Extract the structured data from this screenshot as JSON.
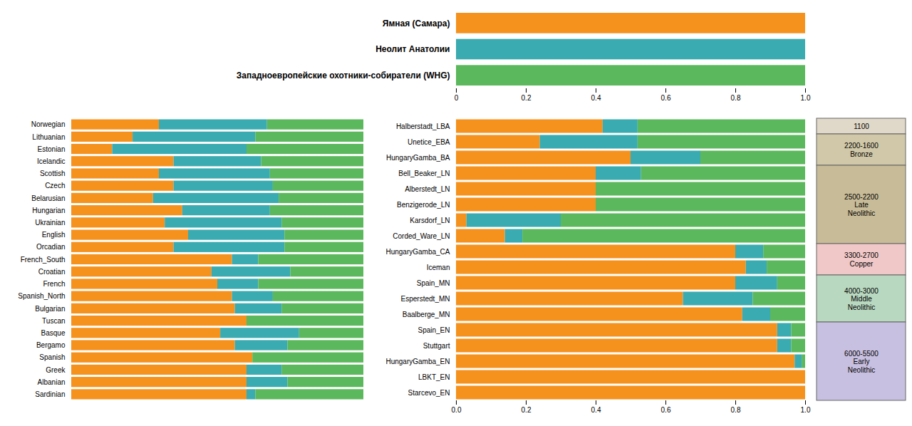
{
  "chart_data": [
    {
      "type": "bar",
      "orientation": "horizontal",
      "stacked": true,
      "categories": [
        "Ямная (Самара)",
        "Неолит Анатолии",
        "Западноевропейские охотники-собиратели (WHG)"
      ],
      "series": [
        {
          "color": "#F5921E",
          "values": [
            1.0,
            0.0,
            0.0
          ]
        },
        {
          "color": "#3AABB0",
          "values": [
            0.0,
            1.0,
            0.0
          ]
        },
        {
          "color": "#5CB85C",
          "values": [
            0.0,
            0.0,
            1.0
          ]
        }
      ],
      "xlim": [
        0,
        1
      ],
      "xticks": [
        0,
        0.2,
        0.4,
        0.6,
        0.8,
        {
          "value": 1,
          "label": "1.0"
        }
      ]
    },
    {
      "type": "bar",
      "orientation": "horizontal",
      "stacked": true,
      "categories": [
        "Norwegian",
        "Lithuanian",
        "Estonian",
        "Icelandic",
        "Scottish",
        "Czech",
        "Belarusian",
        "Hungarian",
        "Ukrainian",
        "English",
        "Orcadian",
        "French_South",
        "Croatian",
        "French",
        "Spanish_North",
        "Bulgarian",
        "Tuscan",
        "Basque",
        "Bergamo",
        "Spanish",
        "Greek",
        "Albanian",
        "Sardinian"
      ],
      "series": [
        {
          "color": "#F5921E",
          "values": [
            0.3,
            0.21,
            0.14,
            0.35,
            0.3,
            0.35,
            0.28,
            0.38,
            0.32,
            0.4,
            0.35,
            0.55,
            0.48,
            0.5,
            0.55,
            0.56,
            0.6,
            0.51,
            0.56,
            0.62,
            0.6,
            0.6,
            0.6
          ]
        },
        {
          "color": "#3AABB0",
          "values": [
            0.37,
            0.42,
            0.46,
            0.3,
            0.38,
            0.34,
            0.43,
            0.3,
            0.4,
            0.33,
            0.38,
            0.09,
            0.27,
            0.14,
            0.14,
            0.16,
            0.0,
            0.27,
            0.18,
            0.0,
            0.12,
            0.14,
            0.03
          ]
        },
        {
          "color": "#5CB85C",
          "values": [
            0.33,
            0.37,
            0.4,
            0.35,
            0.32,
            0.31,
            0.29,
            0.32,
            0.28,
            0.27,
            0.27,
            0.36,
            0.25,
            0.36,
            0.31,
            0.28,
            0.4,
            0.22,
            0.26,
            0.38,
            0.28,
            0.26,
            0.37
          ]
        }
      ],
      "xlim": [
        0,
        1
      ],
      "xticks": [],
      "tick_labels": "y"
    },
    {
      "type": "bar",
      "orientation": "horizontal",
      "stacked": true,
      "categories": [
        "Halberstadt_LBA",
        "Unetice_EBA",
        "HungaryGamba_BA",
        "Bell_Beaker_LN",
        "Alberstedt_LN",
        "Benzigerode_LN",
        "Karsdorf_LN",
        "Corded_Ware_LN",
        "HungaryGamba_CA",
        "Iceman",
        "Spain_MN",
        "Esperstedt_MN",
        "Baalberge_MN",
        "Spain_EN",
        "Stuttgart",
        "HungaryGamba_EN",
        "LBKT_EN",
        "Starcevo_EN"
      ],
      "series": [
        {
          "color": "#F5921E",
          "values": [
            0.42,
            0.24,
            0.5,
            0.4,
            0.4,
            0.4,
            0.03,
            0.14,
            0.8,
            0.83,
            0.8,
            0.65,
            0.82,
            0.92,
            0.92,
            0.97,
            1.0,
            1.0
          ]
        },
        {
          "color": "#3AABB0",
          "values": [
            0.1,
            0.28,
            0.2,
            0.13,
            0.0,
            0.0,
            0.27,
            0.05,
            0.08,
            0.06,
            0.12,
            0.2,
            0.08,
            0.04,
            0.04,
            0.02,
            0.0,
            0.0
          ]
        },
        {
          "color": "#5CB85C",
          "values": [
            0.48,
            0.48,
            0.3,
            0.47,
            0.6,
            0.6,
            0.7,
            0.81,
            0.12,
            0.11,
            0.08,
            0.15,
            0.1,
            0.04,
            0.04,
            0.01,
            0.0,
            0.0
          ]
        }
      ],
      "xlim": [
        0,
        1
      ],
      "xticks": [
        {
          "value": 0,
          "label": "0.0"
        },
        0.2,
        0.4,
        0.6,
        0.8,
        {
          "value": 1,
          "label": "1.0"
        }
      ],
      "annotations": [
        {
          "text": "1100",
          "color": "#E0D8C8",
          "first": "Halberstadt_LBA",
          "last": "Halberstadt_LBA"
        },
        {
          "text": "2200-1600\nBronze",
          "color": "#D0C8A8",
          "first": "Unetice_EBA",
          "last": "HungaryGamba_BA"
        },
        {
          "text": "2500-2200\nLate\nNeolithic",
          "color": "#C8BC98",
          "first": "Bell_Beaker_LN",
          "last": "Corded_Ware_LN"
        },
        {
          "text": "3300-2700\nCopper",
          "color": "#F0C8C8",
          "first": "HungaryGamba_CA",
          "last": "Iceman"
        },
        {
          "text": "4000-3000\nMiddle\nNeolithic",
          "color": "#B8D8C0",
          "first": "Spain_MN",
          "last": "Baalberge_MN"
        },
        {
          "text": "6000-5500\nEarly\nNeolithic",
          "color": "#C8C0E0",
          "first": "Spain_EN",
          "last": "Starcevo_EN"
        }
      ]
    }
  ]
}
